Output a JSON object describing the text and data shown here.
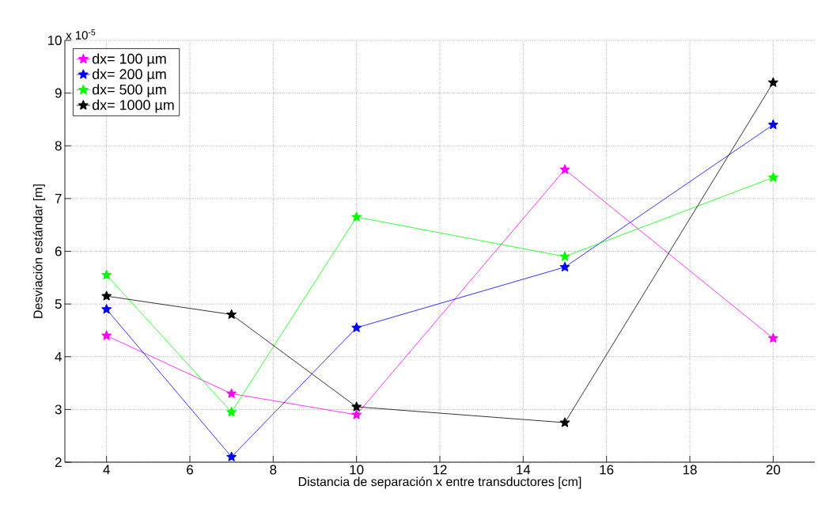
{
  "chart_data": {
    "type": "line",
    "xlabel": "Distancia de separación x entre transductores [cm]",
    "ylabel": "Desviación estándar [m]",
    "annotations": [
      "x 10$^{-5}$"
    ],
    "x": [
      4,
      7,
      10,
      15,
      20
    ],
    "series": [
      {
        "name": "dx= 100 µm",
        "color": "#ff00ff",
        "values": [
          4.4,
          3.3,
          2.9,
          7.55,
          4.35
        ]
      },
      {
        "name": "dx= 200 µm",
        "color": "#0000ff",
        "values": [
          4.9,
          2.1,
          4.55,
          5.7,
          8.4
        ]
      },
      {
        "name": "dx= 500 µm",
        "color": "#00ff00",
        "values": [
          5.55,
          2.95,
          6.65,
          5.9,
          7.4
        ]
      },
      {
        "name": "dx= 1000 µm",
        "color": "#000000",
        "values": [
          5.15,
          4.8,
          3.05,
          2.75,
          9.2
        ]
      }
    ],
    "xlim": [
      3,
      21
    ],
    "xticks": [
      4,
      6,
      8,
      10,
      12,
      14,
      16,
      18,
      20
    ],
    "ylim": [
      2,
      10
    ],
    "yticks": [
      2,
      3,
      4,
      5,
      6,
      7,
      8,
      9,
      10
    ],
    "grid": true,
    "legend": "top left",
    "marker": "star",
    "line_style": "solid"
  }
}
